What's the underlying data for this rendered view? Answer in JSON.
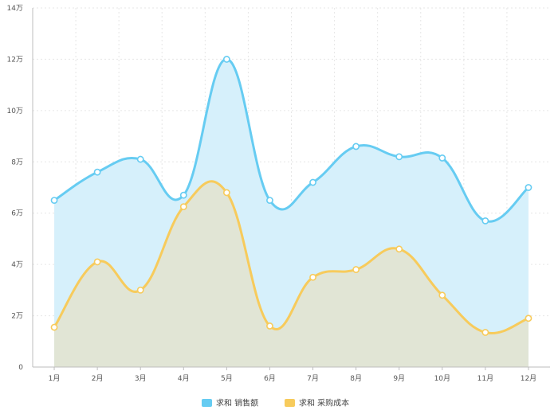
{
  "chart_data": {
    "type": "area",
    "categories": [
      "1月",
      "2月",
      "3月",
      "4月",
      "5月",
      "6月",
      "7月",
      "8月",
      "9月",
      "10月",
      "11月",
      "12月"
    ],
    "ylim": [
      0,
      140000
    ],
    "yticks": [
      0,
      20000,
      40000,
      60000,
      80000,
      100000,
      120000,
      140000
    ],
    "ytick_labels": [
      "0",
      "2万",
      "4万",
      "6万",
      "8万",
      "10万",
      "12万",
      "14万"
    ],
    "grid": true,
    "legend_position": "bottom-center",
    "series": [
      {
        "name": "求和 销售额",
        "color": "#66CCF2",
        "fill": "#D6F0FB",
        "values": [
          65000,
          76000,
          81000,
          67000,
          120000,
          65000,
          72000,
          86000,
          82000,
          81500,
          57000,
          70000
        ]
      },
      {
        "name": "求和 采购成本",
        "color": "#F7CB5C",
        "fill": "#E1E4D3",
        "values": [
          15500,
          41000,
          30000,
          62500,
          68000,
          16000,
          35000,
          38000,
          46000,
          28000,
          13500,
          19000
        ]
      }
    ]
  }
}
